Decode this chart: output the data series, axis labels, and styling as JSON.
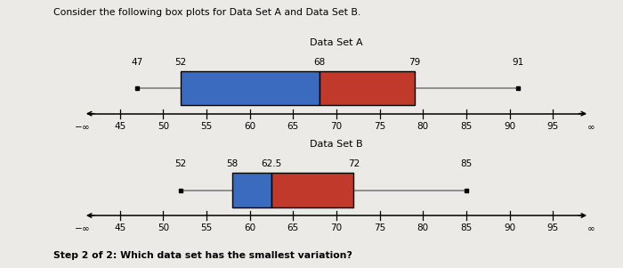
{
  "title_a": "Data Set A",
  "title_b": "Data Set B",
  "header": "Consider the following box plots for Data Set A and Data Set B.",
  "footer": "Step 2 of 2: Which data set has the smallest variation?",
  "dataset_a": {
    "min": 47,
    "q1": 52,
    "median": 68,
    "q3": 79,
    "max": 91
  },
  "dataset_b": {
    "min": 52,
    "q1": 58,
    "median": 62.5,
    "q3": 72,
    "max": 85
  },
  "axis_ticks": [
    45,
    50,
    55,
    60,
    65,
    70,
    75,
    80,
    85,
    90,
    95
  ],
  "axis_min": 45,
  "axis_max": 95,
  "color_left": "#3a6bbf",
  "color_right": "#c0392b",
  "bg_color": "#eceae7",
  "fig_bg": "#eceae7",
  "header_fontsize": 7.8,
  "footer_fontsize": 7.8,
  "label_fontsize": 7.5,
  "tick_fontsize": 7.5,
  "title_fontsize": 8.0
}
